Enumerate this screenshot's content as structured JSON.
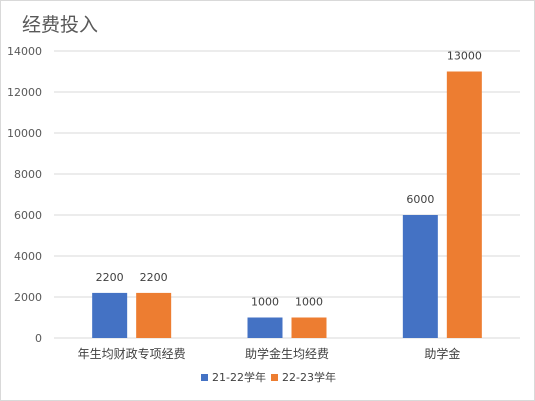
{
  "chart_data": {
    "type": "bar",
    "title": "经费投入",
    "categories": [
      "年生均财政专项经费",
      "助学金生均经费",
      "助学金"
    ],
    "series": [
      {
        "name": "21-22学年",
        "values": [
          2200,
          1000,
          6000
        ],
        "color": "#4472c4"
      },
      {
        "name": "22-23学年",
        "values": [
          2200,
          1000,
          13000
        ],
        "color": "#ed7d31"
      }
    ],
    "ylim": [
      0,
      14000
    ],
    "yticks": [
      0,
      2000,
      4000,
      6000,
      8000,
      10000,
      12000,
      14000
    ],
    "grid": true,
    "legend": "bottom",
    "gridColor": "#d9d9d9"
  }
}
